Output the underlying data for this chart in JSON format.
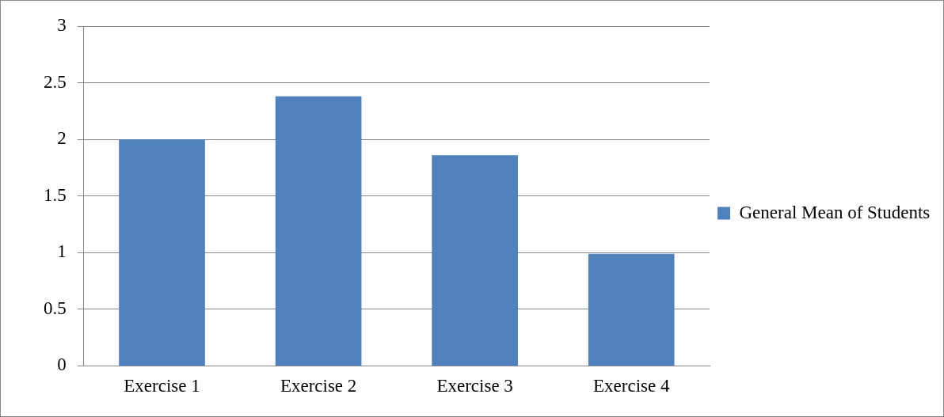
{
  "chart_data": {
    "type": "bar",
    "categories": [
      "Exercise 1",
      "Exercise 2",
      "Exercise 3",
      "Exercise 4"
    ],
    "series": [
      {
        "name": "General Mean of Students",
        "color": "#4f81bd",
        "values": [
          2,
          2.38,
          1.86,
          0.99
        ]
      }
    ],
    "ylim": [
      0,
      3
    ],
    "yticks": [
      0,
      0.5,
      1,
      1.5,
      2,
      2.5,
      3
    ],
    "grid": "y",
    "legend": "right"
  }
}
